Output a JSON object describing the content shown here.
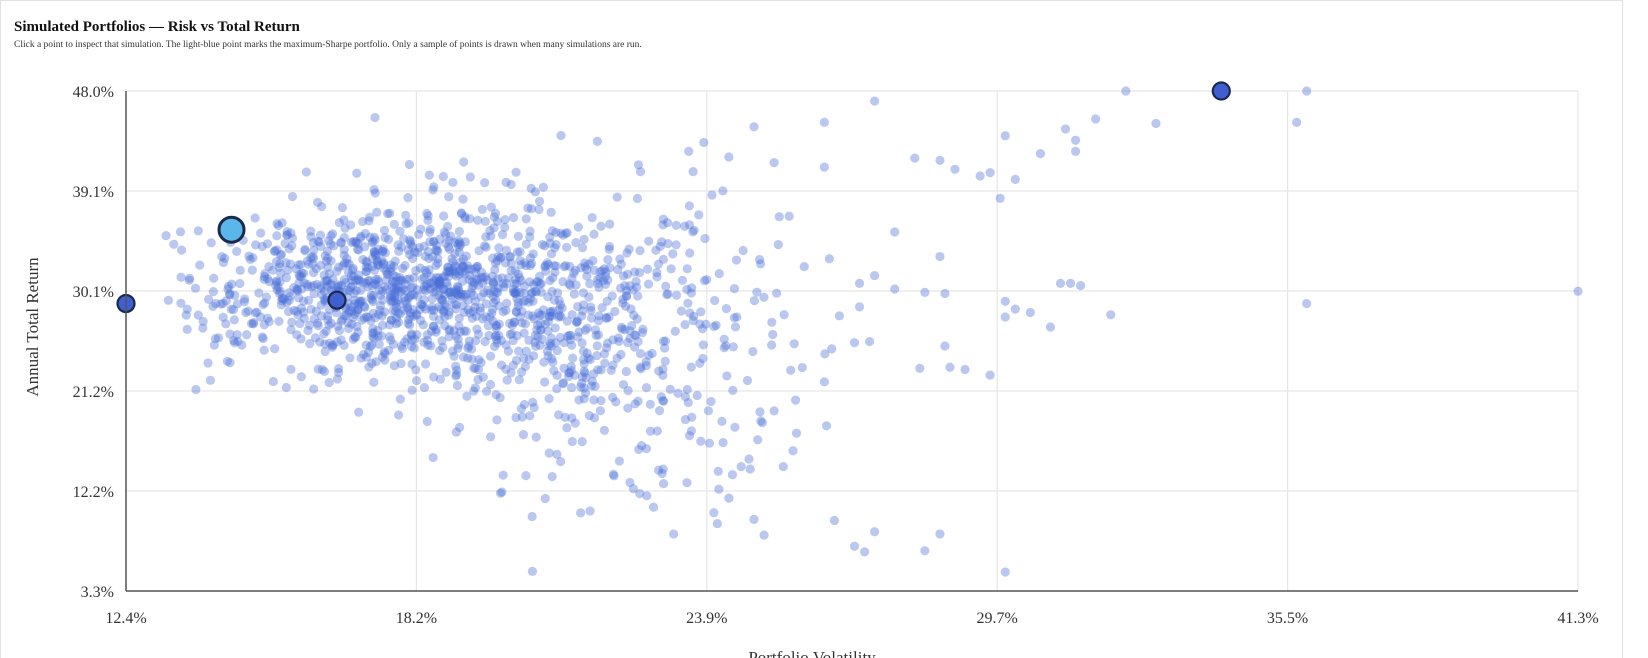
{
  "title": "Simulated Portfolios — Risk vs Total Return",
  "subtitle": "Click a point to inspect that simulation. The light-blue point marks the maximum-Sharpe portfolio. Only a sample of points is drawn when many simulations are run.",
  "colors": {
    "point": "#4a6fd8",
    "highlight": "#5bb6ea",
    "marker": "#3f5fd0",
    "grid": "#e6e6e6",
    "axis": "#555555"
  },
  "chart_data": {
    "type": "scatter",
    "xlabel": "Portfolio Volatility",
    "ylabel": "Annual Total Return",
    "xlim": [
      12.4,
      41.3
    ],
    "ylim": [
      3.3,
      48.0
    ],
    "x_ticks": [
      "12.4%",
      "18.2%",
      "23.9%",
      "29.7%",
      "35.5%",
      "41.3%"
    ],
    "y_ticks": [
      "48.0%",
      "39.1%",
      "30.1%",
      "21.2%",
      "12.2%",
      "3.3%"
    ],
    "grid": true,
    "highlight": {
      "label": "maximum-Sharpe portfolio",
      "x": 14.5,
      "y": 35.6
    },
    "marked_points": [
      {
        "x": 12.4,
        "y": 29.0
      },
      {
        "x": 16.6,
        "y": 29.3
      },
      {
        "x": 34.2,
        "y": 48.0
      }
    ],
    "sparse_points": [
      [
        41.3,
        30.1
      ],
      [
        35.9,
        48.0
      ],
      [
        35.7,
        45.2
      ],
      [
        35.9,
        29.0
      ],
      [
        32.3,
        48.0
      ],
      [
        31.7,
        45.5
      ],
      [
        32.9,
        45.1
      ],
      [
        27.3,
        47.1
      ],
      [
        26.3,
        45.2
      ],
      [
        29.9,
        44.0
      ],
      [
        31.1,
        44.6
      ],
      [
        31.3,
        43.6
      ],
      [
        31.3,
        42.6
      ],
      [
        30.6,
        42.4
      ],
      [
        30.1,
        40.1
      ],
      [
        29.6,
        40.7
      ],
      [
        28.1,
        42.0
      ],
      [
        28.6,
        41.8
      ],
      [
        28.9,
        41.0
      ],
      [
        29.4,
        40.4
      ],
      [
        26.3,
        41.2
      ],
      [
        29.8,
        38.4
      ],
      [
        27.7,
        35.4
      ],
      [
        28.6,
        33.2
      ],
      [
        25.9,
        32.3
      ],
      [
        26.4,
        33.0
      ],
      [
        27.3,
        31.5
      ],
      [
        27.0,
        30.8
      ],
      [
        27.7,
        30.3
      ],
      [
        28.3,
        30.0
      ],
      [
        28.7,
        29.9
      ],
      [
        29.9,
        29.2
      ],
      [
        30.1,
        28.5
      ],
      [
        30.4,
        28.2
      ],
      [
        29.9,
        27.8
      ],
      [
        30.8,
        26.9
      ],
      [
        32.0,
        28.0
      ],
      [
        31.0,
        30.8
      ],
      [
        31.4,
        30.6
      ],
      [
        31.2,
        30.8
      ],
      [
        25.5,
        28.0
      ],
      [
        26.6,
        27.9
      ],
      [
        27.0,
        28.7
      ],
      [
        25.7,
        25.4
      ],
      [
        26.9,
        25.5
      ],
      [
        28.7,
        25.2
      ],
      [
        28.2,
        23.2
      ],
      [
        28.8,
        23.3
      ],
      [
        29.1,
        23.1
      ],
      [
        26.3,
        22.0
      ],
      [
        29.6,
        22.6
      ],
      [
        25.3,
        19.4
      ],
      [
        27.2,
        25.6
      ],
      [
        24.9,
        9.7
      ],
      [
        25.1,
        8.3
      ],
      [
        26.5,
        9.6
      ],
      [
        26.9,
        7.3
      ],
      [
        27.1,
        6.8
      ],
      [
        27.3,
        8.6
      ],
      [
        28.3,
        6.9
      ],
      [
        28.6,
        8.4
      ],
      [
        29.9,
        5.0
      ],
      [
        24.4,
        11.6
      ],
      [
        24.2,
        12.4
      ],
      [
        23.3,
        8.4
      ],
      [
        23.1,
        12.9
      ],
      [
        24.1,
        10.3
      ],
      [
        22.9,
        10.8
      ],
      [
        23.0,
        14.1
      ],
      [
        24.8,
        15.1
      ],
      [
        25.6,
        36.8
      ],
      [
        24.4,
        42.1
      ],
      [
        25.3,
        41.6
      ],
      [
        24.9,
        44.8
      ],
      [
        23.6,
        42.6
      ],
      [
        23.9,
        43.4
      ],
      [
        22.6,
        41.4
      ]
    ],
    "cloud": {
      "count": 1500,
      "seed": 20240517,
      "clusters": [
        {
          "weight": 0.55,
          "x_mean": 17.3,
          "x_sd": 1.7,
          "y_mean": 30.6,
          "y_sd": 3.4
        },
        {
          "weight": 0.3,
          "x_mean": 20.4,
          "x_sd": 1.9,
          "y_mean": 28.5,
          "y_sd": 5.4
        },
        {
          "weight": 0.15,
          "x_mean": 22.4,
          "x_sd": 1.6,
          "y_mean": 24.0,
          "y_sd": 7.5
        }
      ]
    }
  }
}
